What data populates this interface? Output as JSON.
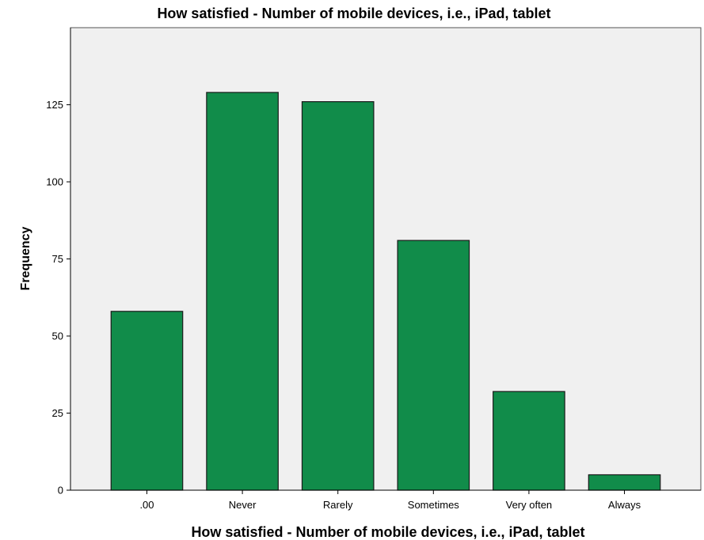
{
  "chart_data": {
    "type": "bar",
    "title": "How satisfied - Number of mobile devices, i.e., iPad, tablet",
    "xlabel": "How satisfied - Number of mobile devices, i.e., iPad, tablet",
    "ylabel": "Frequency",
    "categories": [
      ".00",
      "Never",
      "Rarely",
      "Sometimes",
      "Very often",
      "Always"
    ],
    "values": [
      58,
      129,
      126,
      81,
      32,
      5
    ],
    "ylim": [
      0,
      150
    ],
    "yticks": [
      0,
      25,
      50,
      75,
      100,
      125
    ],
    "grid": false,
    "legend": "none",
    "colors": {
      "bar_fill": "#118c4a",
      "bar_stroke": "#1a1a1a",
      "plot_background": "#f0f0f0",
      "axis": "#000000"
    }
  }
}
